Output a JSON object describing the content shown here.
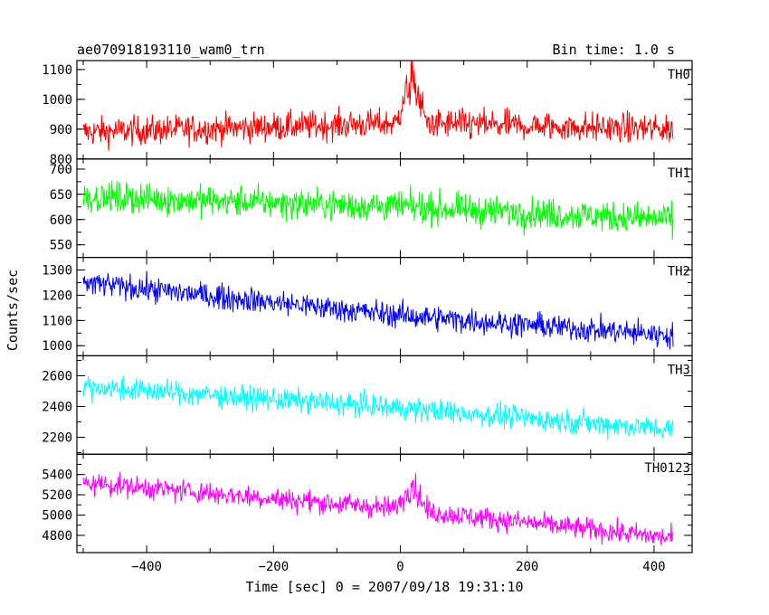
{
  "header": {
    "title": "ae070918193110_wam0_trn",
    "bin_time": "Bin time: 1.0 s"
  },
  "chart_data": {
    "type": "line",
    "xlabel": "Time [sec] 0 = 2007/09/18 19:31:10",
    "ylabel": "Counts/sec",
    "xlim": [
      -510,
      460
    ],
    "x_range": [
      -500,
      430
    ],
    "x_ticks": [
      -400,
      -200,
      0,
      200,
      400
    ],
    "x_tick_labels": [
      "−400",
      "−200",
      "0",
      "200",
      "400"
    ],
    "panels": [
      {
        "name": "TH0",
        "color": "#ff0000",
        "ylim": [
          800,
          1130
        ],
        "yticks": [
          800,
          900,
          1000,
          1100
        ],
        "trend": [
          [
            -500,
            890
          ],
          [
            0,
            920
          ],
          [
            430,
            900
          ]
        ],
        "noise": 45,
        "spike": {
          "x": 18,
          "y": 1130
        }
      },
      {
        "name": "TH1",
        "color": "#00ff00",
        "ylim": [
          525,
          720
        ],
        "yticks": [
          550,
          600,
          650,
          700
        ],
        "trend": [
          [
            -500,
            645
          ],
          [
            0,
            625
          ],
          [
            430,
            600
          ]
        ],
        "noise": 28
      },
      {
        "name": "TH2",
        "color": "#0000ff",
        "ylim": [
          960,
          1350
        ],
        "yticks": [
          1000,
          1100,
          1200,
          1300
        ],
        "trend": [
          [
            -500,
            1250
          ],
          [
            0,
            1120
          ],
          [
            430,
            1040
          ]
        ],
        "noise": 45
      },
      {
        "name": "TH3",
        "color": "#00ffff",
        "ylim": [
          2090,
          2730
        ],
        "yticks": [
          2200,
          2400,
          2600
        ],
        "trend": [
          [
            -500,
            2530
          ],
          [
            0,
            2390
          ],
          [
            430,
            2250
          ]
        ],
        "noise": 70
      },
      {
        "name": "TH0123",
        "color": "#ff00ff",
        "ylim": [
          4630,
          5600
        ],
        "yticks": [
          4800,
          5000,
          5200,
          5400
        ],
        "trend": [
          [
            -500,
            5320
          ],
          [
            0,
            5060
          ],
          [
            430,
            4770
          ]
        ],
        "noise": 100,
        "spike": {
          "x": 18,
          "y": 5420
        }
      }
    ]
  }
}
